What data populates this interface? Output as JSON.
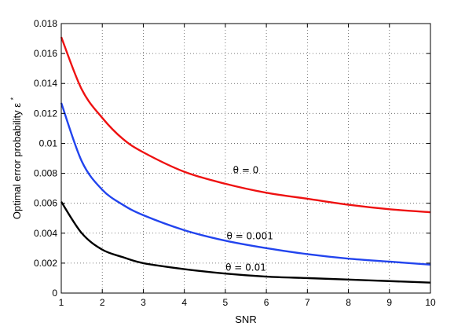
{
  "chart_data": {
    "type": "line",
    "title": "",
    "xlabel": "SNR",
    "ylabel": "Optimal error probability ε",
    "ylabel_superscript": "*",
    "xlim": [
      1,
      10
    ],
    "ylim": [
      0,
      0.018
    ],
    "xticks": [
      1,
      2,
      3,
      4,
      5,
      6,
      7,
      8,
      9,
      10
    ],
    "xtick_labels": [
      "1",
      "2",
      "3",
      "4",
      "5",
      "6",
      "7",
      "8",
      "9",
      "10"
    ],
    "yticks": [
      0,
      0.002,
      0.004,
      0.006,
      0.008,
      0.01,
      0.012,
      0.014,
      0.016,
      0.018
    ],
    "ytick_labels": [
      "0",
      "0.002",
      "0.004",
      "0.006",
      "0.008",
      "0.01",
      "0.012",
      "0.014",
      "0.016",
      "0.018"
    ],
    "grid": true,
    "x": [
      1,
      1.5,
      2,
      2.5,
      3,
      4,
      5,
      6,
      7,
      8,
      9,
      10
    ],
    "series": [
      {
        "color": "#ee1111",
        "values": [
          0.0171,
          0.0136,
          0.0117,
          0.0103,
          0.0094,
          0.0081,
          0.0073,
          0.0067,
          0.0063,
          0.0059,
          0.0056,
          0.0054
        ]
      },
      {
        "color": "#2244ee",
        "values": [
          0.0127,
          0.0088,
          0.0069,
          0.0059,
          0.0052,
          0.0042,
          0.0035,
          0.003,
          0.0026,
          0.0023,
          0.0021,
          0.0019
        ]
      },
      {
        "color": "#000000",
        "values": [
          0.0061,
          0.004,
          0.0029,
          0.0024,
          0.002,
          0.0016,
          0.0013,
          0.0011,
          0.001,
          0.0009,
          0.0008,
          0.0007
        ]
      }
    ],
    "annotations": [
      {
        "text": "θ = 0",
        "x": 5.5,
        "y": 0.008
      },
      {
        "text": "θ = 0.001",
        "x": 5.6,
        "y": 0.0036
      },
      {
        "text": "θ = 0.01",
        "x": 5.5,
        "y": 0.0015
      }
    ]
  }
}
